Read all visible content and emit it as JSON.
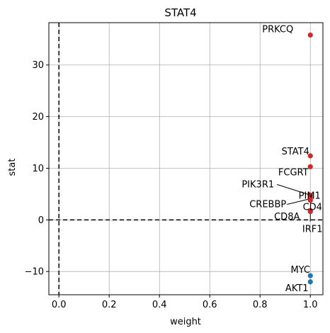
{
  "chart_data": {
    "type": "scatter",
    "title": "STAT4",
    "xlabel": "weight",
    "ylabel": "stat",
    "xlim": [
      -0.04,
      1.05
    ],
    "ylim": [
      -14.5,
      38.2
    ],
    "xticks": [
      0.0,
      0.2,
      0.4,
      0.6,
      0.8,
      1.0
    ],
    "xtick_labels": [
      "0.0",
      "0.2",
      "0.4",
      "0.6",
      "0.8",
      "1.0"
    ],
    "yticks": [
      -10,
      0,
      10,
      20,
      30
    ],
    "ytick_labels": [
      "−10",
      "0",
      "10",
      "20",
      "30"
    ],
    "grid": true,
    "reference_lines": {
      "x": 0,
      "y": 0,
      "style": "dashed"
    },
    "colors": {
      "positive": "#d62728",
      "negative": "#1f77b4"
    },
    "points": [
      {
        "label": "PRKCQ",
        "x": 1.0,
        "y": 35.8
      },
      {
        "label": "STAT4",
        "x": 1.0,
        "y": 12.4
      },
      {
        "label": "FCGRT",
        "x": 1.0,
        "y": 10.3
      },
      {
        "label": "PIK3R1",
        "x": 1.0,
        "y": 4.8
      },
      {
        "label": "PIM1",
        "x": 1.0,
        "y": 4.4
      },
      {
        "label": "CREBBP",
        "x": 1.0,
        "y": 4.1
      },
      {
        "label": "CD4",
        "x": 1.0,
        "y": 3.8
      },
      {
        "label": "CD8A",
        "x": 1.0,
        "y": 1.8
      },
      {
        "label": "IRF1",
        "x": 1.0,
        "y": 1.6
      },
      {
        "label": "MYC",
        "x": 1.0,
        "y": -10.8
      },
      {
        "label": "AKT1",
        "x": 1.0,
        "y": -12.0
      }
    ]
  }
}
